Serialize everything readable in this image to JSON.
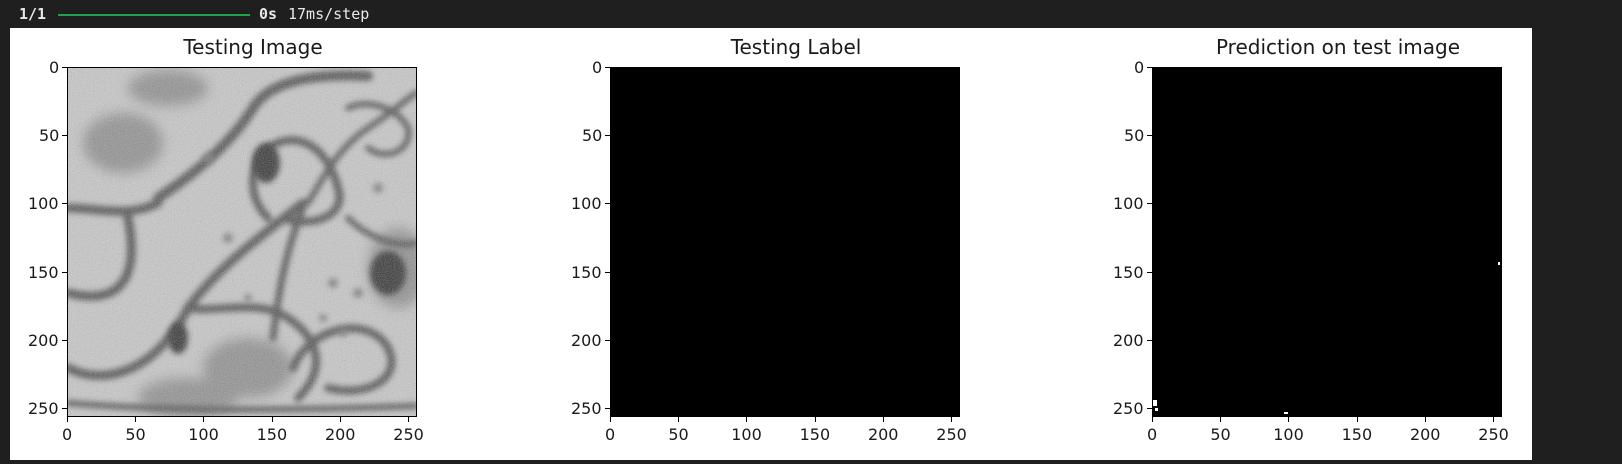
{
  "progress": {
    "count": "1/1",
    "fraction": 1.0,
    "elapsed": "0s",
    "step_time": "17ms/step",
    "bar_color": "#1fa34a"
  },
  "panels": [
    {
      "title": "Testing Image",
      "content": "grayscale-microscopy"
    },
    {
      "title": "Testing Label",
      "content": "all-black-mask"
    },
    {
      "title": "Prediction on test image",
      "content": "mostly-black-mask"
    }
  ],
  "axes": {
    "x_ticks": [
      "0",
      "50",
      "100",
      "150",
      "200",
      "250"
    ],
    "y_ticks": [
      "0",
      "50",
      "100",
      "150",
      "200",
      "250"
    ],
    "xlim": [
      0,
      256
    ],
    "ylim": [
      0,
      256
    ]
  }
}
